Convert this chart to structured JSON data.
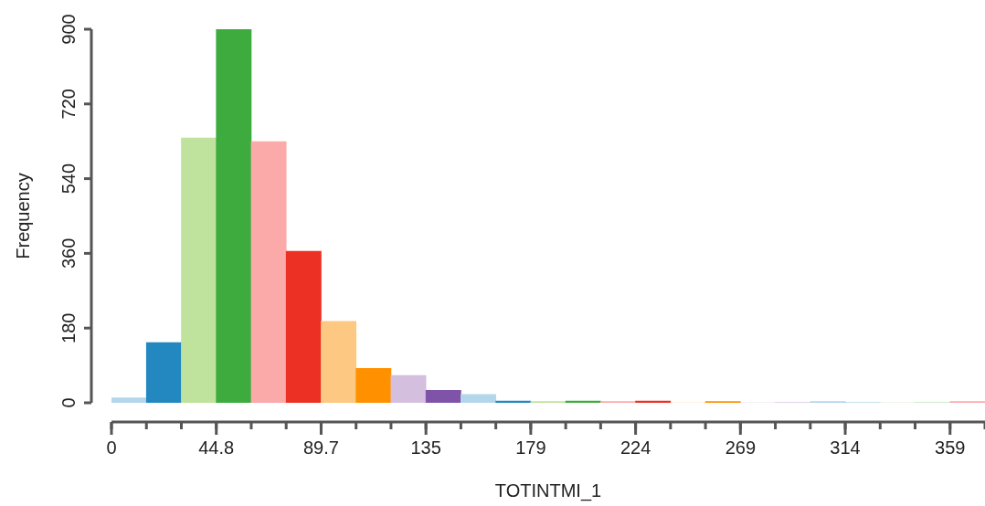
{
  "chart_data": {
    "type": "histogram",
    "xlabel": "TOTINTMI_1",
    "ylabel": "Frequency",
    "bins": [
      0,
      14.95,
      29.9,
      44.85,
      59.8,
      74.75,
      89.7,
      104.65,
      119.6,
      134.55,
      149.5,
      164.45,
      179.4,
      194.35,
      209.3,
      224.25,
      239.2,
      254.15,
      269.1,
      284.05,
      299,
      313.95,
      328.9,
      343.85,
      358.8,
      373.75
    ],
    "values": [
      12,
      145,
      638,
      900,
      629,
      365,
      196,
      83,
      66,
      30,
      20,
      4,
      3,
      4,
      3,
      4,
      0,
      3,
      0,
      0,
      3,
      0,
      0,
      0,
      3
    ],
    "colors": [
      "#b3d7ea",
      "#2388c0",
      "#bfe39c",
      "#3dab3d",
      "#fcaaa9",
      "#ec3024",
      "#fdc882",
      "#ff9100",
      "#d4bfdf",
      "#7f53a8",
      "#b3d7ea",
      "#2388c0",
      "#bfe39c",
      "#3dab3d",
      "#fcaaa9",
      "#ec3024",
      "#fdc882",
      "#ff9100",
      "#d4bfdf",
      "#7f53a8",
      "#b3d7ea",
      "#2388c0",
      "#bfe39c",
      "#3dab3d",
      "#fcaaa9"
    ],
    "xlim": [
      0,
      373.75
    ],
    "xticks": [
      0,
      {
        "value": 44.85,
        "label": "44.8"
      },
      {
        "value": 89.7,
        "label": "89.7"
      },
      {
        "value": 134.55,
        "label": "135"
      },
      {
        "value": 179.4,
        "label": "179"
      },
      {
        "value": 224.25,
        "label": "224"
      },
      {
        "value": 269.1,
        "label": "269"
      },
      {
        "value": 313.95,
        "label": "314"
      },
      {
        "value": 358.8,
        "label": "359"
      }
    ],
    "ylim": [
      0,
      900
    ],
    "yticks": [
      0,
      180,
      360,
      540,
      720,
      900
    ]
  }
}
